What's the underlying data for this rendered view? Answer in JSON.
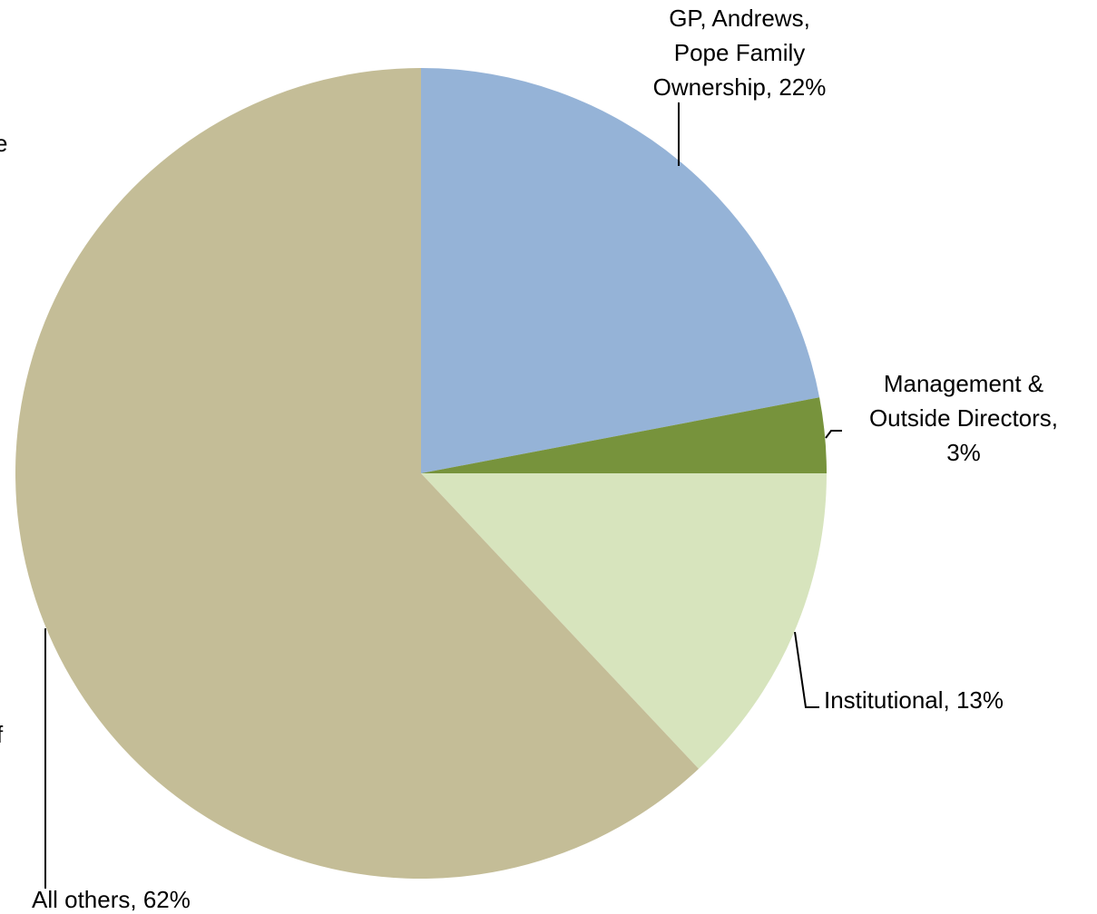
{
  "chart_data": {
    "type": "pie",
    "categories": [
      [
        "GP, Andrews,",
        "Pope Family",
        "Ownership, 22%"
      ],
      [
        "Management &",
        "Outside Directors,",
        "3%"
      ],
      [
        "Institutional, 13%"
      ],
      [
        "All others, 62%"
      ]
    ],
    "values": [
      22,
      3,
      13,
      62
    ],
    "colors": [
      "#95b3d7",
      "#77933c",
      "#d7e4bd",
      "#c4bd97"
    ],
    "cropped_text": [
      "e",
      "f"
    ]
  }
}
